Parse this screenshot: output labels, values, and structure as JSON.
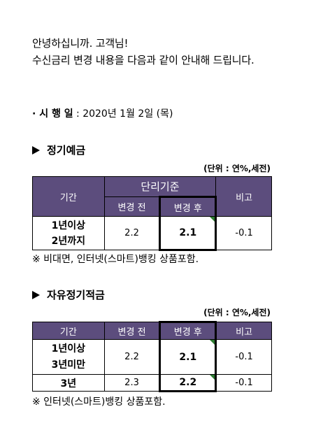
{
  "greeting": {
    "line1": "안녕하십니까. 고객님!",
    "line2": "수신금리 변경 내용을 다음과 같이 안내해 드립니다."
  },
  "effective": {
    "label": "· 시 행 일",
    "value": " : 2020년 1월 2일 (목)"
  },
  "section1": {
    "title": "정기예금",
    "unit": "(단위 : 연%,세전)",
    "headers": {
      "period": "기간",
      "basis": "단리기준",
      "before": "변경 전",
      "after": "변경 후",
      "diff": "비고"
    },
    "rows": [
      {
        "period_line1": "1년이상",
        "period_line2": "2년까지",
        "before": "2.2",
        "after": "2.1",
        "diff": "-0.1"
      }
    ],
    "note": "※ 비대면, 인터넷(스마트)뱅킹 상품포함."
  },
  "section2": {
    "title": "자유정기적금",
    "unit": "(단위 : 연%,세전)",
    "headers": {
      "period": "기간",
      "before": "변경 전",
      "after": "변경 후",
      "diff": "비고"
    },
    "rows": [
      {
        "period_line1": "1년이상",
        "period_line2": "3년미만",
        "before": "2.2",
        "after": "2.1",
        "diff": "-0.1"
      },
      {
        "period_line1": "3년",
        "before": "2.3",
        "after": "2.2",
        "diff": "-0.1"
      }
    ],
    "note": "※ 인터넷(스마트)뱅킹 상품포함."
  },
  "colors": {
    "header_bg": "#5c4d7d",
    "header_text": "#ffffff",
    "corner_mark": "#2e7d32"
  }
}
